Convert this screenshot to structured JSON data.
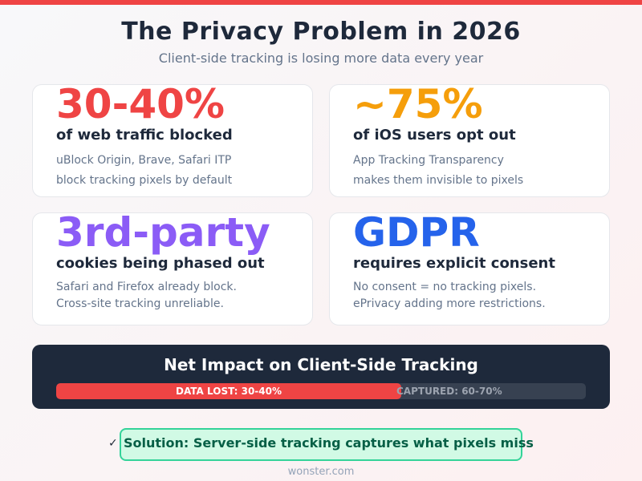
{
  "header": {
    "title": "The Privacy Problem in 2026",
    "subtitle": "Client-side tracking is losing more data every year",
    "accent_color": "#ef4444"
  },
  "cards": [
    {
      "stat": "30-40%",
      "stat_color": "#ef4444",
      "heading": "of web traffic blocked",
      "lines": [
        "uBlock Origin, Brave, Safari ITP",
        "block tracking pixels by default"
      ]
    },
    {
      "stat": "~75%",
      "stat_color": "#f59e0b",
      "heading": "of iOS users opt out",
      "lines": [
        "App Tracking Transparency",
        "makes them invisible to pixels"
      ]
    },
    {
      "stat": "3rd-party",
      "stat_color": "#8b5cf6",
      "heading": "cookies being phased out",
      "lines": [
        "Safari and Firefox already block.",
        "Cross-site tracking unreliable."
      ]
    },
    {
      "stat": "GDPR",
      "stat_color": "#2563eb",
      "heading": "requires explicit consent",
      "lines": [
        "No consent = no tracking pixels.",
        "ePrivacy adding more restrictions."
      ]
    }
  ],
  "impact": {
    "title": "Net Impact on Client-Side Tracking",
    "lost_label": "DATA LOST: 30-40%",
    "captured_label": "CAPTURED: 60-70%",
    "lost_color": "#ef4444",
    "captured_color": "#374151"
  },
  "solution": {
    "icon": "check-icon",
    "check_glyph": "✓",
    "text": "Solution: Server-side tracking captures what pixels miss"
  },
  "footer": {
    "site": "wonster.com"
  }
}
